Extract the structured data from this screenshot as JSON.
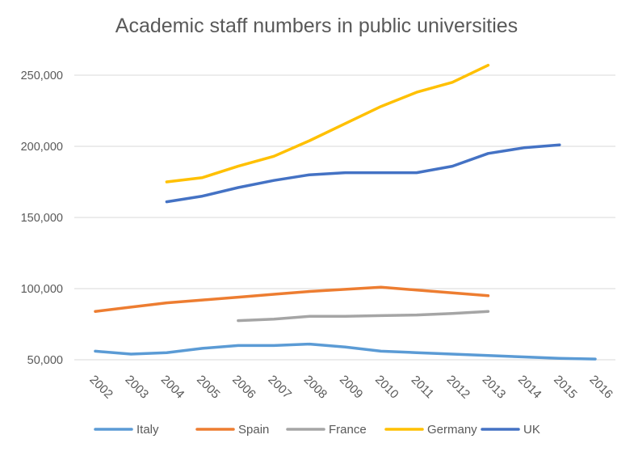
{
  "chart_data": {
    "type": "line",
    "title": "Academic staff numbers in public universities",
    "xlabel": "",
    "ylabel": "",
    "ylim": [
      50000,
      250000
    ],
    "yticks": [
      50000,
      100000,
      150000,
      200000,
      250000
    ],
    "ytick_labels": [
      "50,000",
      "100,000",
      "150,000",
      "200,000",
      "250,000"
    ],
    "grid": true,
    "legend_position": "bottom",
    "categories": [
      "2002",
      "2003",
      "2004",
      "2005",
      "2006",
      "2007",
      "2008",
      "2009",
      "2010",
      "2011",
      "2012",
      "2013",
      "2014",
      "2015",
      "2016"
    ],
    "series": [
      {
        "name": "Italy",
        "color": "#5b9bd5",
        "values": [
          56000,
          54000,
          55000,
          58000,
          60000,
          60000,
          61000,
          59000,
          56000,
          55000,
          54000,
          53000,
          52000,
          51000,
          50500
        ]
      },
      {
        "name": "Spain",
        "color": "#ed7d31",
        "values": [
          84000,
          87000,
          90000,
          92000,
          94000,
          96000,
          98000,
          99500,
          101000,
          99000,
          97000,
          95000,
          null,
          null,
          null
        ]
      },
      {
        "name": "France",
        "color": "#a5a5a5",
        "values": [
          null,
          null,
          null,
          null,
          77500,
          78500,
          80500,
          80500,
          81000,
          81500,
          82500,
          84000,
          null,
          null,
          null
        ]
      },
      {
        "name": "Germany",
        "color": "#ffc000",
        "values": [
          null,
          null,
          175000,
          178000,
          186000,
          193000,
          204000,
          216000,
          228000,
          238000,
          245000,
          257000,
          null,
          null,
          null
        ]
      },
      {
        "name": "UK",
        "color": "#4472c4",
        "values": [
          null,
          null,
          161000,
          165000,
          171000,
          176000,
          180000,
          181500,
          181500,
          181500,
          186000,
          195000,
          199000,
          201000,
          null
        ]
      }
    ]
  }
}
